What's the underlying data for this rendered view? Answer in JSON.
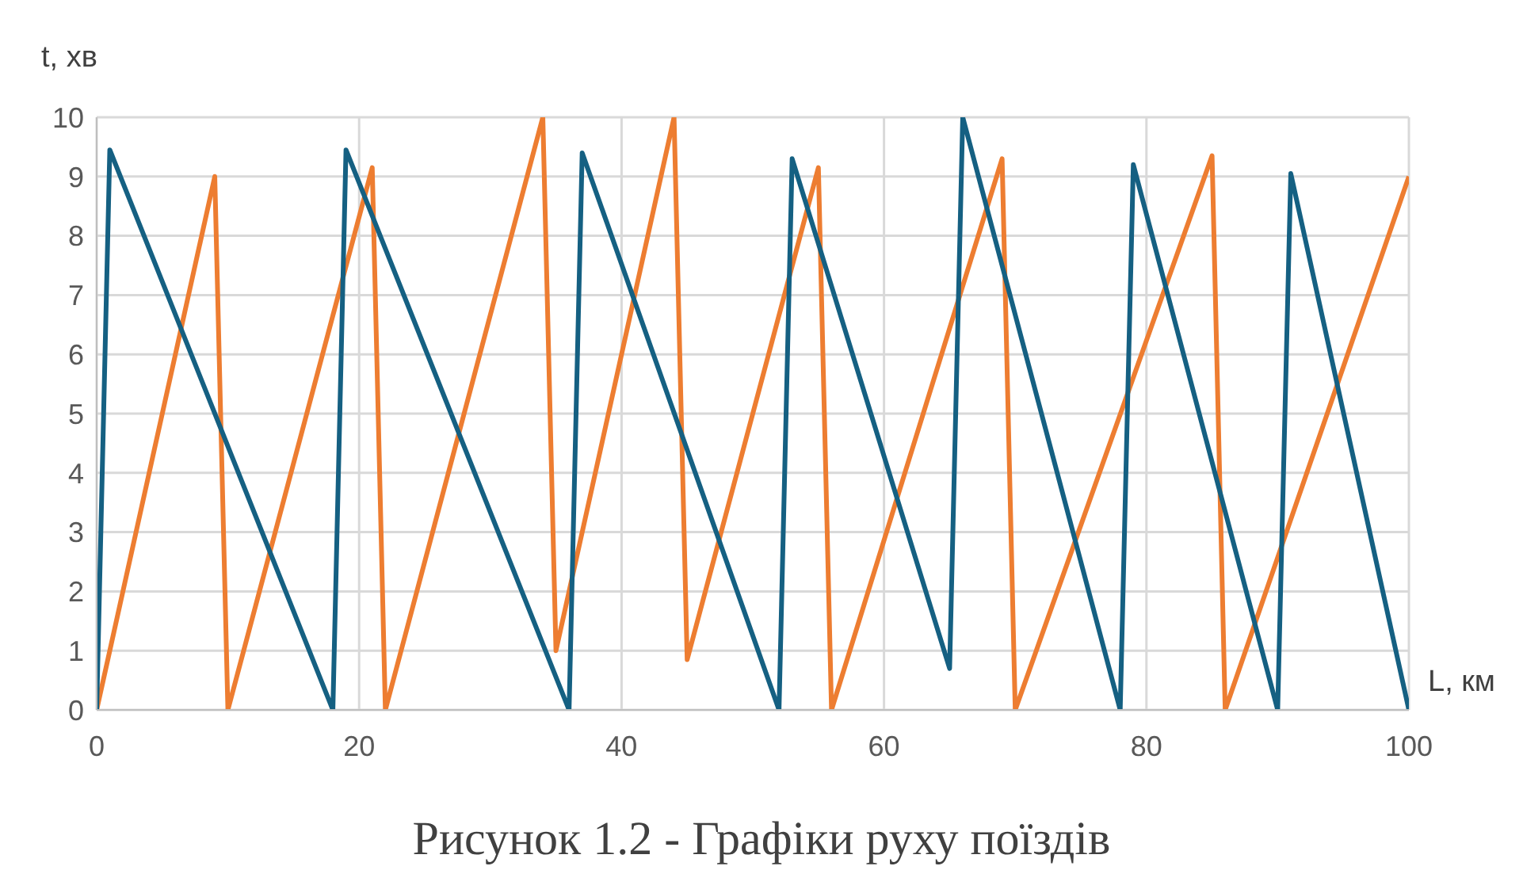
{
  "chart_data": {
    "type": "line",
    "title": "Рисунок 1.2 - Графіки руху поїздів",
    "xlabel": "L, км",
    "ylabel": "t, хв",
    "xlim": [
      0,
      100
    ],
    "xticks": [
      0,
      20,
      40,
      60,
      80,
      100
    ],
    "ylim": [
      0,
      10
    ],
    "yticks": [
      0,
      1,
      2,
      3,
      4,
      5,
      6,
      7,
      8,
      9,
      10
    ],
    "grid": true,
    "marker": "none",
    "line_style": "solid",
    "series": [
      {
        "color": "#ed7d31",
        "x": [
          0,
          9,
          10,
          21,
          22,
          34,
          35,
          44,
          45,
          55,
          56,
          69,
          70,
          85,
          86,
          100
        ],
        "values": [
          0,
          9,
          0,
          9.15,
          0,
          10,
          1,
          10,
          0.85,
          9.15,
          0,
          9.3,
          0,
          9.35,
          0,
          9
        ]
      },
      {
        "color": "#156082",
        "x": [
          0,
          1,
          18,
          19,
          36,
          37,
          52,
          53,
          65,
          66,
          78,
          79,
          90,
          91,
          100
        ],
        "values": [
          0,
          9.45,
          0,
          9.45,
          0,
          9.4,
          0,
          9.3,
          0.7,
          10,
          0,
          9.2,
          0,
          9.05,
          0
        ]
      }
    ]
  }
}
